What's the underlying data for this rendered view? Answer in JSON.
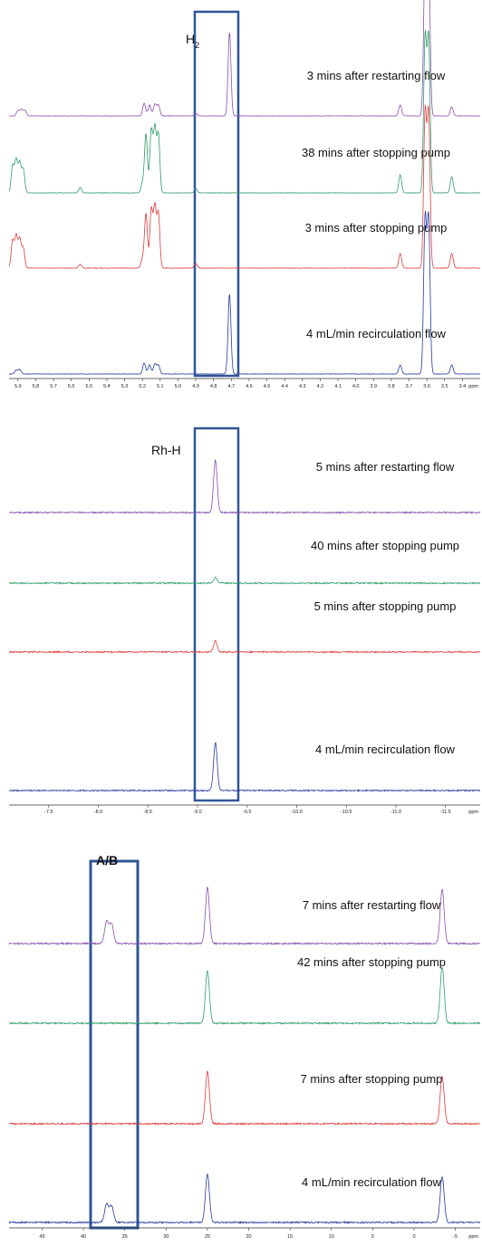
{
  "colors": {
    "purple": "#8a4fb0",
    "green": "#2e9e69",
    "red": "#e03c3c",
    "blue": "#2a3aa0",
    "box": "#2f5597"
  },
  "chart_data": [
    {
      "type": "line",
      "panel_label": "H",
      "panel_label_sub": "2",
      "xunit": "ppm",
      "xlim": [
        5.95,
        3.3
      ],
      "xticks": [
        "5.9",
        "5.8",
        "5.7",
        "5.6",
        "5.5",
        "5.4",
        "5.3",
        "5.2",
        "5.1",
        "5.0",
        "4.9",
        "4.8",
        "4.7",
        "4.6",
        "4.5",
        "4.4",
        "4.3",
        "4.2",
        "4.1",
        "4.0",
        "3.9",
        "3.8",
        "3.7",
        "3.6",
        "3.5",
        "3.4"
      ],
      "highlight_region": [
        4.84,
        4.55
      ],
      "series": [
        {
          "label": "3 mins after restarting flow",
          "color": "purple",
          "peaks": [
            {
              "x": 5.9,
              "h": 6
            },
            {
              "x": 5.88,
              "h": 7
            },
            {
              "x": 5.86,
              "h": 6
            },
            {
              "x": 5.19,
              "h": 14
            },
            {
              "x": 5.16,
              "h": 12
            },
            {
              "x": 5.13,
              "h": 13
            },
            {
              "x": 5.11,
              "h": 12
            },
            {
              "x": 4.9,
              "h": 3
            },
            {
              "x": 4.71,
              "h": 92
            },
            {
              "x": 3.75,
              "h": 12
            },
            {
              "x": 3.61,
              "h": 170
            },
            {
              "x": 3.59,
              "h": 170
            },
            {
              "x": 3.46,
              "h": 10
            }
          ]
        },
        {
          "label": "38 mins after stopping pump",
          "color": "green",
          "peaks": [
            {
              "x": 5.93,
              "h": 30
            },
            {
              "x": 5.91,
              "h": 36
            },
            {
              "x": 5.89,
              "h": 33
            },
            {
              "x": 5.87,
              "h": 26
            },
            {
              "x": 5.55,
              "h": 6
            },
            {
              "x": 5.2,
              "h": 10
            },
            {
              "x": 5.18,
              "h": 65
            },
            {
              "x": 5.15,
              "h": 68
            },
            {
              "x": 5.13,
              "h": 70
            },
            {
              "x": 5.11,
              "h": 64
            },
            {
              "x": 4.9,
              "h": 5
            },
            {
              "x": 3.75,
              "h": 20
            },
            {
              "x": 3.61,
              "h": 170
            },
            {
              "x": 3.59,
              "h": 170
            },
            {
              "x": 3.46,
              "h": 18
            }
          ]
        },
        {
          "label": "3 mins after stopping pump",
          "color": "red",
          "peaks": [
            {
              "x": 5.93,
              "h": 30
            },
            {
              "x": 5.91,
              "h": 35
            },
            {
              "x": 5.89,
              "h": 32
            },
            {
              "x": 5.87,
              "h": 22
            },
            {
              "x": 5.55,
              "h": 4
            },
            {
              "x": 5.2,
              "h": 10
            },
            {
              "x": 5.18,
              "h": 60
            },
            {
              "x": 5.15,
              "h": 64
            },
            {
              "x": 5.13,
              "h": 66
            },
            {
              "x": 5.11,
              "h": 60
            },
            {
              "x": 4.9,
              "h": 5
            },
            {
              "x": 3.75,
              "h": 16
            },
            {
              "x": 3.61,
              "h": 170
            },
            {
              "x": 3.59,
              "h": 170
            },
            {
              "x": 3.46,
              "h": 16
            }
          ]
        },
        {
          "label": "4 mL/min recirculation flow",
          "color": "blue",
          "peaks": [
            {
              "x": 5.91,
              "h": 4
            },
            {
              "x": 5.89,
              "h": 5
            },
            {
              "x": 5.19,
              "h": 12
            },
            {
              "x": 5.16,
              "h": 10
            },
            {
              "x": 5.13,
              "h": 11
            },
            {
              "x": 5.11,
              "h": 10
            },
            {
              "x": 4.71,
              "h": 88
            },
            {
              "x": 3.75,
              "h": 10
            },
            {
              "x": 3.61,
              "h": 170
            },
            {
              "x": 3.59,
              "h": 170
            },
            {
              "x": 3.46,
              "h": 10
            }
          ]
        }
      ]
    },
    {
      "type": "line",
      "panel_label": "Rh-H",
      "xunit": "ppm",
      "xlim": [
        -7.1,
        -11.85
      ],
      "xticks": [
        "-7.5",
        "-8.0",
        "-8.5",
        "-9.0",
        "-9.5",
        "-10.0",
        "-10.5",
        "-11.0",
        "-11.5"
      ],
      "highlight_region": [
        -8.95,
        -9.45
      ],
      "series": [
        {
          "label": "5 mins after restarting flow",
          "color": "purple",
          "peaks": [
            {
              "x": -9.18,
              "h": 58
            }
          ]
        },
        {
          "label": "40 mins after stopping pump",
          "color": "green",
          "peaks": [
            {
              "x": -9.18,
              "h": 6
            }
          ]
        },
        {
          "label": "5 mins after stopping pump",
          "color": "red",
          "peaks": [
            {
              "x": -9.18,
              "h": 12
            }
          ]
        },
        {
          "label": "4 mL/min recirculation flow",
          "color": "blue",
          "peaks": [
            {
              "x": -9.18,
              "h": 53
            }
          ]
        }
      ]
    },
    {
      "type": "line",
      "panel_label": "A/B",
      "xunit": "ppm",
      "xlim": [
        49,
        -8
      ],
      "xticks": [
        "45",
        "40",
        "35",
        "30",
        "25",
        "20",
        "15",
        "10",
        "5",
        "0",
        "-5"
      ],
      "highlight_region": [
        40,
        34
      ],
      "series": [
        {
          "label": "7 mins after restarting flow",
          "color": "purple",
          "peaks": [
            {
              "x": 37.2,
              "h": 24
            },
            {
              "x": 36.6,
              "h": 22
            },
            {
              "x": 25.0,
              "h": 62
            },
            {
              "x": -3.4,
              "h": 60
            }
          ]
        },
        {
          "label": "42 mins after stopping pump",
          "color": "green",
          "peaks": [
            {
              "x": 25.0,
              "h": 58
            },
            {
              "x": -3.4,
              "h": 62
            }
          ]
        },
        {
          "label": "7 mins after stopping pump",
          "color": "red",
          "peaks": [
            {
              "x": 25.0,
              "h": 58
            },
            {
              "x": -3.4,
              "h": 52
            }
          ]
        },
        {
          "label": "4 mL/min recirculation flow",
          "color": "blue",
          "peaks": [
            {
              "x": 37.2,
              "h": 20
            },
            {
              "x": 36.6,
              "h": 18
            },
            {
              "x": 25.0,
              "h": 53
            },
            {
              "x": -3.4,
              "h": 50
            }
          ]
        }
      ]
    }
  ]
}
